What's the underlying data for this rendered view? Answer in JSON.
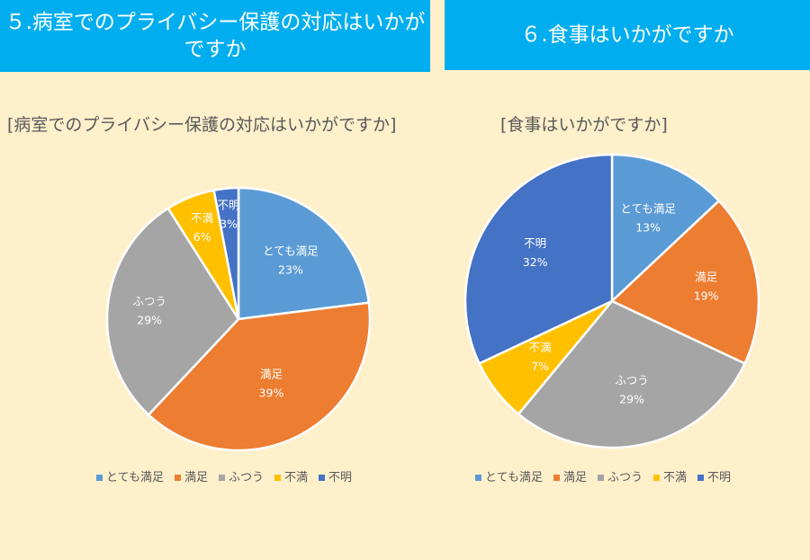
{
  "header": {
    "left_title": "５.病室でのプライバシー保護の対応はいかがですか",
    "right_title": "６.食事はいかがですか"
  },
  "chart_data": [
    {
      "type": "pie",
      "title": "[病室でのプライバシー保護の対応はいかがですか]",
      "categories": [
        "とても満足",
        "満足",
        "ふつう",
        "不満",
        "不明"
      ],
      "values": [
        23,
        39,
        29,
        6,
        3
      ],
      "labels": [
        "23%",
        "39%",
        "29%",
        "6%",
        "3%"
      ],
      "colors": [
        "#5B9BD5",
        "#ED7D31",
        "#A5A5A5",
        "#FFC000",
        "#4472C4"
      ],
      "legend": "bottom"
    },
    {
      "type": "pie",
      "title": "[食事はいかがですか]",
      "categories": [
        "とても満足",
        "満足",
        "ふつう",
        "不満",
        "不明"
      ],
      "values": [
        13,
        19,
        29,
        7,
        32
      ],
      "labels": [
        "13%",
        "19%",
        "29%",
        "7%",
        "32%"
      ],
      "colors": [
        "#5B9BD5",
        "#ED7D31",
        "#A5A5A5",
        "#FFC000",
        "#4472C4"
      ],
      "legend": "bottom"
    }
  ]
}
